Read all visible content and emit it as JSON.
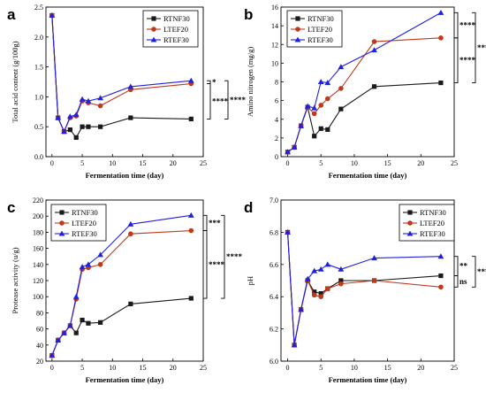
{
  "colors": {
    "RTNF30": "#1a1a1a",
    "LTEF20": "#c0391b",
    "RTEF30": "#2020e0"
  },
  "chart_data": [
    {
      "id": "a",
      "type": "line",
      "panel_label": "a",
      "xlabel": "Fermentation time (day)",
      "ylabel": "Total acid content (g/100g)",
      "xlim": [
        -1,
        25
      ],
      "ylim": [
        0.0,
        2.5
      ],
      "xticks": [
        0,
        5,
        10,
        15,
        20,
        25
      ],
      "yticks": [
        0.0,
        0.5,
        1.0,
        1.5,
        2.0,
        2.5
      ],
      "ytick_labels": [
        "0.0",
        "0.5",
        "1.0",
        "1.5",
        "2.0",
        "2.5"
      ],
      "legend_position": "top-right",
      "x": [
        0,
        1,
        2,
        3,
        4,
        5,
        6,
        8,
        13,
        23
      ],
      "series": [
        {
          "name": "RTNF30",
          "marker": "square",
          "values": [
            2.36,
            0.65,
            0.42,
            0.45,
            0.32,
            0.5,
            0.5,
            0.5,
            0.65,
            0.63
          ]
        },
        {
          "name": "LTEF20",
          "marker": "circle",
          "values": [
            2.36,
            0.65,
            0.42,
            0.65,
            0.68,
            0.93,
            0.9,
            0.85,
            1.12,
            1.22
          ]
        },
        {
          "name": "RTEF30",
          "marker": "triangle",
          "values": [
            2.36,
            0.65,
            0.42,
            0.67,
            0.7,
            0.96,
            0.93,
            0.98,
            1.17,
            1.27
          ]
        }
      ],
      "significance": [
        {
          "label": "*",
          "from": "LTEF20",
          "to": "RTEF30"
        },
        {
          "label": "****",
          "from": "RTNF30",
          "to": "LTEF20"
        },
        {
          "label": "****",
          "from": "RTNF30",
          "to": "RTEF30"
        }
      ]
    },
    {
      "id": "b",
      "type": "line",
      "panel_label": "b",
      "xlabel": "Fermentation time (day)",
      "ylabel": "Amino nitrogen (mg/g)",
      "xlim": [
        -1,
        25
      ],
      "ylim": [
        0,
        16
      ],
      "xticks": [
        0,
        5,
        10,
        15,
        20,
        25
      ],
      "yticks": [
        0,
        2,
        4,
        6,
        8,
        10,
        12,
        14,
        16
      ],
      "ytick_labels": [
        "0",
        "2",
        "4",
        "6",
        "8",
        "10",
        "12",
        "14",
        "16"
      ],
      "legend_position": "top-left",
      "x": [
        0,
        1,
        2,
        3,
        4,
        5,
        6,
        8,
        13,
        23
      ],
      "series": [
        {
          "name": "RTNF30",
          "marker": "square",
          "values": [
            0.5,
            1.0,
            3.3,
            5.3,
            2.2,
            3.0,
            2.9,
            5.1,
            7.5,
            7.9
          ]
        },
        {
          "name": "LTEF20",
          "marker": "circle",
          "values": [
            0.5,
            1.0,
            3.3,
            5.3,
            4.6,
            5.5,
            6.2,
            7.3,
            12.3,
            12.7
          ]
        },
        {
          "name": "RTEF30",
          "marker": "triangle",
          "values": [
            0.5,
            1.0,
            3.3,
            5.4,
            5.2,
            8.0,
            7.9,
            9.6,
            11.4,
            15.4
          ]
        }
      ],
      "significance": [
        {
          "label": "****",
          "from": "LTEF20",
          "to": "RTEF30"
        },
        {
          "label": "****",
          "from": "RTNF30",
          "to": "LTEF20"
        },
        {
          "label": "****",
          "from": "RTNF30",
          "to": "RTEF30"
        }
      ]
    },
    {
      "id": "c",
      "type": "line",
      "panel_label": "c",
      "xlabel": "Fermentation time (day)",
      "ylabel": "Protease activity (u/g)",
      "xlim": [
        -1,
        25
      ],
      "ylim": [
        20,
        220
      ],
      "xticks": [
        0,
        5,
        10,
        15,
        20,
        25
      ],
      "yticks": [
        20,
        40,
        60,
        80,
        100,
        120,
        140,
        160,
        180,
        200,
        220
      ],
      "ytick_labels": [
        "20",
        "40",
        "60",
        "80",
        "100",
        "120",
        "140",
        "160",
        "180",
        "200",
        "220"
      ],
      "legend_position": "top-left",
      "x": [
        0,
        1,
        2,
        3,
        4,
        5,
        6,
        8,
        13,
        23
      ],
      "series": [
        {
          "name": "RTNF30",
          "marker": "square",
          "values": [
            27,
            46,
            55,
            64,
            55,
            71,
            67,
            68,
            91,
            98
          ]
        },
        {
          "name": "LTEF20",
          "marker": "circle",
          "values": [
            27,
            46,
            55,
            64,
            97,
            134,
            136,
            140,
            178,
            182
          ]
        },
        {
          "name": "RTEF30",
          "marker": "triangle",
          "values": [
            27,
            46,
            55,
            64,
            100,
            137,
            140,
            152,
            190,
            201
          ]
        }
      ],
      "significance": [
        {
          "label": "***",
          "from": "LTEF20",
          "to": "RTEF30"
        },
        {
          "label": "****",
          "from": "RTNF30",
          "to": "LTEF20"
        },
        {
          "label": "****",
          "from": "RTNF30",
          "to": "RTEF30"
        }
      ]
    },
    {
      "id": "d",
      "type": "line",
      "panel_label": "d",
      "xlabel": "Fermentation time (day)",
      "ylabel": "pH",
      "xlim": [
        -1,
        25
      ],
      "ylim": [
        6.0,
        7.0
      ],
      "xticks": [
        0,
        5,
        10,
        15,
        20,
        25
      ],
      "yticks": [
        6.0,
        6.2,
        6.4,
        6.6,
        6.8,
        7.0
      ],
      "ytick_labels": [
        "6.0",
        "6.2",
        "6.4",
        "6.6",
        "6.8",
        "7.0"
      ],
      "legend_position": "top-right",
      "x": [
        0,
        1,
        2,
        3,
        4,
        5,
        6,
        8,
        13,
        23
      ],
      "series": [
        {
          "name": "RTNF30",
          "marker": "square",
          "values": [
            6.8,
            6.1,
            6.32,
            6.5,
            6.43,
            6.42,
            6.45,
            6.5,
            6.5,
            6.53
          ]
        },
        {
          "name": "LTEF20",
          "marker": "circle",
          "values": [
            6.8,
            6.1,
            6.32,
            6.5,
            6.41,
            6.4,
            6.45,
            6.48,
            6.5,
            6.46
          ]
        },
        {
          "name": "RTEF30",
          "marker": "triangle",
          "values": [
            6.8,
            6.1,
            6.32,
            6.51,
            6.56,
            6.57,
            6.6,
            6.57,
            6.64,
            6.65
          ]
        }
      ],
      "significance": [
        {
          "label": "**",
          "from": "RTNF30",
          "to": "RTEF30"
        },
        {
          "label": "ns",
          "from": "LTEF20",
          "to": "RTNF30"
        },
        {
          "label": "***",
          "from": "LTEF20",
          "to": "RTEF30"
        }
      ]
    }
  ]
}
